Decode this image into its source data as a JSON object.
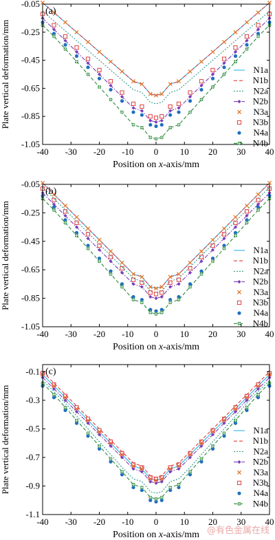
{
  "watermark": "@有色金属在线",
  "styles": {
    "N1a": {
      "color": "#29b6e8",
      "line": "solid",
      "marker": "none"
    },
    "N1b": {
      "color": "#e03c3c",
      "line": "dashed",
      "marker": "none"
    },
    "N2a": {
      "color": "#2e9a8a",
      "line": "dotted",
      "marker": "none"
    },
    "N2b": {
      "color": "#7a3fb8",
      "line": "dashdot",
      "marker": "diamond"
    },
    "N3a": {
      "color": "#e07020",
      "line": "none",
      "marker": "x"
    },
    "N3b": {
      "color": "#e03c3c",
      "line": "none",
      "marker": "square-open"
    },
    "N4a": {
      "color": "#1f6fbf",
      "line": "none",
      "marker": "circle"
    },
    "N4b": {
      "color": "#2a8a3a",
      "line": "dashed",
      "marker": "circle-cross"
    }
  },
  "chart_data": [
    {
      "type": "line",
      "panel_label": "(a)",
      "xlabel": "Position on x-axis/mm",
      "ylabel": "Plate vertical deformation/mm",
      "xlim": [
        -40,
        40
      ],
      "ylim": [
        -1.05,
        -0.05
      ],
      "xticks": [
        -40,
        -30,
        -20,
        -10,
        0,
        10,
        20,
        30,
        40
      ],
      "yticks": [
        -0.05,
        -0.25,
        -0.45,
        -0.65,
        -0.85,
        -1.05
      ],
      "ytick_labels": [
        "-0.05",
        "-0.25",
        "-0.45",
        "-0.65",
        "-0.85",
        "-1.05"
      ],
      "legend_position": "right",
      "x": [
        -40,
        -36,
        -32,
        -28,
        -24,
        -20,
        -16,
        -12,
        -8,
        -5,
        -2,
        0,
        2,
        5,
        8,
        12,
        16,
        20,
        24,
        28,
        32,
        36,
        40
      ],
      "series": [
        {
          "name": "N1a",
          "values": [
            -0.04,
            -0.11,
            -0.18,
            -0.25,
            -0.32,
            -0.39,
            -0.46,
            -0.53,
            -0.6,
            -0.62,
            -0.69,
            -0.7,
            -0.69,
            -0.62,
            -0.6,
            -0.53,
            -0.46,
            -0.39,
            -0.32,
            -0.25,
            -0.18,
            -0.11,
            -0.04
          ]
        },
        {
          "name": "N1b",
          "values": [
            -0.04,
            -0.11,
            -0.18,
            -0.25,
            -0.32,
            -0.39,
            -0.46,
            -0.53,
            -0.6,
            -0.62,
            -0.69,
            -0.7,
            -0.69,
            -0.62,
            -0.6,
            -0.53,
            -0.46,
            -0.39,
            -0.32,
            -0.25,
            -0.18,
            -0.11,
            -0.04
          ]
        },
        {
          "name": "N2a",
          "values": [
            -0.1,
            -0.17,
            -0.24,
            -0.31,
            -0.38,
            -0.45,
            -0.52,
            -0.59,
            -0.66,
            -0.68,
            -0.75,
            -0.76,
            -0.75,
            -0.68,
            -0.66,
            -0.59,
            -0.52,
            -0.45,
            -0.38,
            -0.31,
            -0.24,
            -0.17,
            -0.1
          ]
        },
        {
          "name": "N2b",
          "values": [
            -0.15,
            -0.23,
            -0.31,
            -0.39,
            -0.47,
            -0.55,
            -0.63,
            -0.71,
            -0.79,
            -0.81,
            -0.88,
            -0.89,
            -0.88,
            -0.81,
            -0.79,
            -0.71,
            -0.63,
            -0.55,
            -0.47,
            -0.39,
            -0.31,
            -0.23,
            -0.15
          ]
        },
        {
          "name": "N3a",
          "values": [
            -0.04,
            -0.11,
            -0.18,
            -0.25,
            -0.32,
            -0.39,
            -0.46,
            -0.53,
            -0.6,
            -0.62,
            -0.69,
            -0.7,
            -0.69,
            -0.62,
            -0.6,
            -0.53,
            -0.46,
            -0.39,
            -0.32,
            -0.25,
            -0.18,
            -0.11,
            -0.04
          ]
        },
        {
          "name": "N3b",
          "values": [
            -0.12,
            -0.2,
            -0.28,
            -0.36,
            -0.44,
            -0.52,
            -0.6,
            -0.68,
            -0.76,
            -0.78,
            -0.85,
            -0.86,
            -0.85,
            -0.78,
            -0.76,
            -0.68,
            -0.6,
            -0.52,
            -0.44,
            -0.36,
            -0.28,
            -0.2,
            -0.12
          ]
        },
        {
          "name": "N4a",
          "values": [
            -0.18,
            -0.26,
            -0.34,
            -0.42,
            -0.5,
            -0.58,
            -0.66,
            -0.74,
            -0.82,
            -0.84,
            -0.91,
            -0.92,
            -0.91,
            -0.84,
            -0.82,
            -0.74,
            -0.66,
            -0.58,
            -0.5,
            -0.42,
            -0.34,
            -0.26,
            -0.18
          ]
        },
        {
          "name": "N4b",
          "values": [
            -0.2,
            -0.28,
            -0.37,
            -0.46,
            -0.55,
            -0.64,
            -0.73,
            -0.82,
            -0.91,
            -0.93,
            -1.0,
            -1.01,
            -1.0,
            -0.93,
            -0.91,
            -0.82,
            -0.73,
            -0.64,
            -0.55,
            -0.46,
            -0.37,
            -0.28,
            -0.2
          ]
        }
      ]
    },
    {
      "type": "line",
      "panel_label": "(b)",
      "xlabel": "Position on x-axis/mm",
      "ylabel": "Plate vertical deformation/mm",
      "xlim": [
        -40,
        40
      ],
      "ylim": [
        -1.05,
        -0.05
      ],
      "xticks": [
        -40,
        -30,
        -20,
        -10,
        0,
        10,
        20,
        30,
        40
      ],
      "yticks": [
        -0.05,
        -0.25,
        -0.45,
        -0.65,
        -0.85,
        -1.05
      ],
      "ytick_labels": [
        "-0.05",
        "-0.25",
        "-0.45",
        "-0.65",
        "-0.85",
        "-1.05"
      ],
      "legend_position": "right",
      "x": [
        -40,
        -36,
        -32,
        -28,
        -24,
        -20,
        -16,
        -12,
        -8,
        -5,
        -2,
        0,
        2,
        5,
        8,
        12,
        16,
        20,
        24,
        28,
        32,
        36,
        40
      ],
      "series": [
        {
          "name": "N1a",
          "values": [
            -0.04,
            -0.12,
            -0.2,
            -0.28,
            -0.36,
            -0.44,
            -0.52,
            -0.6,
            -0.68,
            -0.7,
            -0.77,
            -0.78,
            -0.77,
            -0.7,
            -0.68,
            -0.6,
            -0.52,
            -0.44,
            -0.36,
            -0.28,
            -0.2,
            -0.12,
            -0.04
          ]
        },
        {
          "name": "N1b",
          "values": [
            -0.04,
            -0.12,
            -0.2,
            -0.28,
            -0.36,
            -0.44,
            -0.52,
            -0.6,
            -0.68,
            -0.7,
            -0.77,
            -0.78,
            -0.77,
            -0.7,
            -0.68,
            -0.6,
            -0.52,
            -0.44,
            -0.36,
            -0.28,
            -0.2,
            -0.12,
            -0.04
          ]
        },
        {
          "name": "N2a",
          "values": [
            -0.07,
            -0.15,
            -0.23,
            -0.31,
            -0.39,
            -0.47,
            -0.55,
            -0.63,
            -0.71,
            -0.73,
            -0.8,
            -0.81,
            -0.8,
            -0.73,
            -0.71,
            -0.63,
            -0.55,
            -0.47,
            -0.39,
            -0.31,
            -0.23,
            -0.15,
            -0.07
          ]
        },
        {
          "name": "N2b",
          "values": [
            -0.11,
            -0.19,
            -0.27,
            -0.35,
            -0.43,
            -0.51,
            -0.59,
            -0.67,
            -0.75,
            -0.77,
            -0.84,
            -0.85,
            -0.84,
            -0.77,
            -0.75,
            -0.67,
            -0.59,
            -0.51,
            -0.43,
            -0.35,
            -0.27,
            -0.19,
            -0.11
          ]
        },
        {
          "name": "N3a",
          "values": [
            -0.04,
            -0.12,
            -0.2,
            -0.28,
            -0.36,
            -0.44,
            -0.52,
            -0.6,
            -0.68,
            -0.7,
            -0.77,
            -0.78,
            -0.77,
            -0.7,
            -0.68,
            -0.6,
            -0.52,
            -0.44,
            -0.36,
            -0.28,
            -0.2,
            -0.12,
            -0.04
          ]
        },
        {
          "name": "N3b",
          "values": [
            -0.08,
            -0.16,
            -0.24,
            -0.32,
            -0.4,
            -0.48,
            -0.56,
            -0.64,
            -0.72,
            -0.74,
            -0.81,
            -0.82,
            -0.81,
            -0.74,
            -0.72,
            -0.64,
            -0.56,
            -0.48,
            -0.4,
            -0.32,
            -0.24,
            -0.16,
            -0.08
          ]
        },
        {
          "name": "N4a",
          "values": [
            -0.13,
            -0.21,
            -0.3,
            -0.39,
            -0.48,
            -0.57,
            -0.66,
            -0.75,
            -0.84,
            -0.86,
            -0.93,
            -0.94,
            -0.93,
            -0.86,
            -0.84,
            -0.75,
            -0.66,
            -0.57,
            -0.48,
            -0.39,
            -0.3,
            -0.21,
            -0.13
          ]
        },
        {
          "name": "N4b",
          "values": [
            -0.15,
            -0.23,
            -0.32,
            -0.41,
            -0.5,
            -0.59,
            -0.68,
            -0.77,
            -0.86,
            -0.88,
            -0.95,
            -0.96,
            -0.95,
            -0.88,
            -0.86,
            -0.77,
            -0.68,
            -0.59,
            -0.5,
            -0.41,
            -0.32,
            -0.23,
            -0.15
          ]
        }
      ]
    },
    {
      "type": "line",
      "panel_label": "(c)",
      "xlabel": "Position on x-axis/mm",
      "ylabel": "Plate vertical deformation/mm",
      "xlim": [
        -40,
        40
      ],
      "ylim": [
        -1.1,
        -0.05
      ],
      "xticks": [
        -40,
        -30,
        -20,
        -10,
        0,
        10,
        20,
        30,
        40
      ],
      "yticks": [
        -0.1,
        -0.3,
        -0.5,
        -0.7,
        -0.9,
        -1.1
      ],
      "ytick_labels": [
        "-0.1",
        "-0.3",
        "-0.5",
        "-0.7",
        "-0.9",
        "-1.1"
      ],
      "legend_position": "right",
      "x": [
        -40,
        -36,
        -32,
        -28,
        -24,
        -20,
        -16,
        -12,
        -8,
        -5,
        -2,
        0,
        2,
        5,
        8,
        12,
        16,
        20,
        24,
        28,
        32,
        36,
        40
      ],
      "series": [
        {
          "name": "N1a",
          "values": [
            -0.12,
            -0.2,
            -0.28,
            -0.36,
            -0.44,
            -0.52,
            -0.6,
            -0.68,
            -0.76,
            -0.78,
            -0.85,
            -0.86,
            -0.85,
            -0.78,
            -0.76,
            -0.68,
            -0.6,
            -0.52,
            -0.44,
            -0.36,
            -0.28,
            -0.2,
            -0.12
          ]
        },
        {
          "name": "N1b",
          "values": [
            -0.1,
            -0.18,
            -0.26,
            -0.34,
            -0.42,
            -0.5,
            -0.58,
            -0.66,
            -0.74,
            -0.76,
            -0.83,
            -0.84,
            -0.83,
            -0.76,
            -0.74,
            -0.66,
            -0.58,
            -0.5,
            -0.42,
            -0.34,
            -0.26,
            -0.18,
            -0.1
          ]
        },
        {
          "name": "N2a",
          "values": [
            -0.16,
            -0.24,
            -0.32,
            -0.41,
            -0.5,
            -0.59,
            -0.68,
            -0.77,
            -0.85,
            -0.87,
            -0.94,
            -0.95,
            -0.94,
            -0.87,
            -0.85,
            -0.77,
            -0.68,
            -0.59,
            -0.5,
            -0.41,
            -0.32,
            -0.24,
            -0.16
          ]
        },
        {
          "name": "N2b",
          "values": [
            -0.14,
            -0.22,
            -0.3,
            -0.38,
            -0.46,
            -0.54,
            -0.62,
            -0.7,
            -0.78,
            -0.8,
            -0.87,
            -0.88,
            -0.87,
            -0.8,
            -0.78,
            -0.7,
            -0.62,
            -0.54,
            -0.46,
            -0.38,
            -0.3,
            -0.22,
            -0.14
          ]
        },
        {
          "name": "N3a",
          "values": [
            -0.12,
            -0.2,
            -0.28,
            -0.36,
            -0.44,
            -0.52,
            -0.6,
            -0.68,
            -0.76,
            -0.78,
            -0.85,
            -0.86,
            -0.85,
            -0.78,
            -0.76,
            -0.68,
            -0.6,
            -0.52,
            -0.44,
            -0.36,
            -0.28,
            -0.2,
            -0.12
          ]
        },
        {
          "name": "N3b",
          "values": [
            -0.11,
            -0.19,
            -0.27,
            -0.35,
            -0.43,
            -0.51,
            -0.59,
            -0.67,
            -0.75,
            -0.77,
            -0.84,
            -0.85,
            -0.84,
            -0.77,
            -0.75,
            -0.67,
            -0.59,
            -0.51,
            -0.43,
            -0.35,
            -0.27,
            -0.19,
            -0.11
          ]
        },
        {
          "name": "N4a",
          "values": [
            -0.2,
            -0.28,
            -0.37,
            -0.46,
            -0.55,
            -0.64,
            -0.73,
            -0.82,
            -0.91,
            -0.93,
            -1.0,
            -1.01,
            -1.0,
            -0.93,
            -0.91,
            -0.82,
            -0.73,
            -0.64,
            -0.55,
            -0.46,
            -0.37,
            -0.28,
            -0.2
          ]
        },
        {
          "name": "N4b",
          "values": [
            -0.18,
            -0.26,
            -0.35,
            -0.44,
            -0.53,
            -0.62,
            -0.71,
            -0.8,
            -0.89,
            -0.91,
            -0.98,
            -0.99,
            -0.98,
            -0.91,
            -0.89,
            -0.8,
            -0.71,
            -0.62,
            -0.53,
            -0.44,
            -0.35,
            -0.26,
            -0.18
          ]
        }
      ]
    }
  ]
}
